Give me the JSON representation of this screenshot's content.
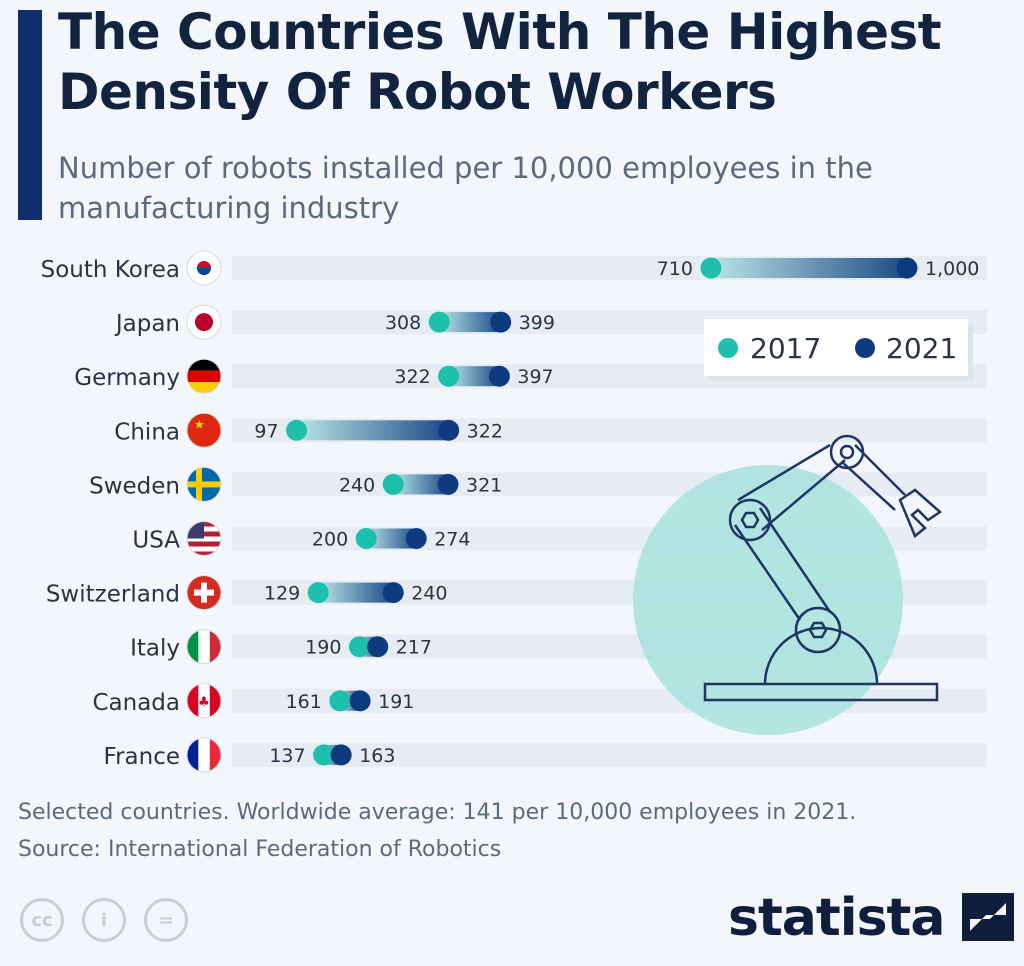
{
  "header": {
    "title": "The Countries With The Highest Density Of Robot Workers",
    "subtitle": "Number of robots installed per 10,000 employees in the manufacturing industry"
  },
  "chart_data": {
    "type": "dumbbell",
    "title": "The Countries With The Highest Density Of Robot Workers",
    "subtitle": "Number of robots installed per 10,000 employees in the manufacturing industry",
    "categories": [
      "South Korea",
      "Japan",
      "Germany",
      "China",
      "Sweden",
      "USA",
      "Switzerland",
      "Italy",
      "Canada",
      "France"
    ],
    "series": [
      {
        "name": "2017",
        "color": "#1dbfad",
        "values": [
          710,
          308,
          322,
          97,
          240,
          200,
          129,
          190,
          161,
          137
        ]
      },
      {
        "name": "2021",
        "color": "#0e3a80",
        "values": [
          1000,
          399,
          397,
          322,
          321,
          274,
          240,
          217,
          191,
          163
        ]
      }
    ],
    "value_labels": {
      "2017": [
        "710",
        "308",
        "322",
        "97",
        "240",
        "200",
        "129",
        "190",
        "161",
        "137"
      ],
      "2021": [
        "1,000",
        "399",
        "397",
        "322",
        "321",
        "274",
        "240",
        "217",
        "191",
        "163"
      ]
    },
    "xlim": [
      0,
      1000
    ],
    "legend": {
      "placement": "top-right",
      "items": [
        "2017",
        "2021"
      ]
    }
  },
  "footer": {
    "note": "Selected countries. Worldwide average: 141 per 10,000 employees in 2021.",
    "source": "Source: International Federation of Robotics",
    "logo": "statista",
    "license_icons": [
      "cc",
      "i",
      "="
    ]
  }
}
